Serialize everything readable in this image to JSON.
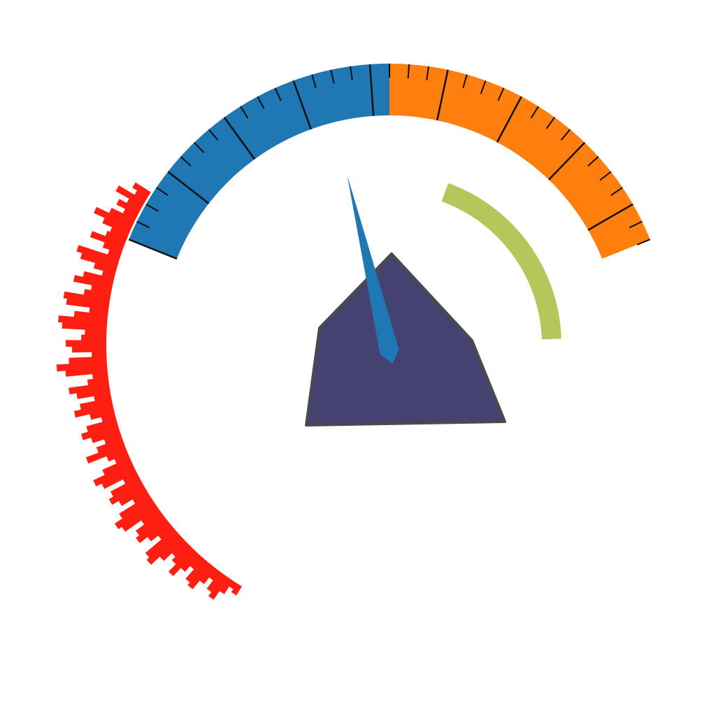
{
  "gauge": {
    "scale_start_deg": -68,
    "scale_mid_deg": 0,
    "scale_end_deg": 68,
    "minor_tick_step_deg": 4,
    "major_tick_step_deg": 16,
    "needle_deg": -14,
    "range_start_deg": 20,
    "range_end_deg": 88,
    "radial_bar_start_deg": -58,
    "radial_bar_end_deg": -148,
    "radial_bar_lengths": [
      26,
      18,
      44,
      22,
      34,
      20,
      38,
      58,
      41,
      26,
      30,
      50,
      28,
      18,
      62,
      54,
      32,
      18,
      44,
      56,
      29,
      38,
      66,
      61,
      27,
      48,
      70,
      64,
      31,
      36,
      58,
      49,
      21,
      54,
      72,
      60,
      22,
      30,
      58,
      48,
      24,
      46,
      56,
      35,
      20,
      44,
      54,
      42,
      25,
      39,
      58,
      30,
      21,
      43,
      61,
      52,
      22,
      46,
      53,
      42,
      24,
      51,
      64,
      58,
      30,
      45,
      51,
      37,
      24,
      54,
      59,
      42,
      26,
      33,
      48,
      32,
      21,
      39,
      44,
      28,
      16,
      31,
      38,
      23,
      10,
      15
    ]
  },
  "colors": {
    "scale_left": "#1f77b4",
    "scale_right": "#ff7f0e",
    "tick": "#111111",
    "needle": "#1f77b4",
    "range": "#b7c65b",
    "radial_bars": "#ff1f12",
    "hub_fill": "#454171",
    "hub_stroke": "#4a4a4a"
  }
}
